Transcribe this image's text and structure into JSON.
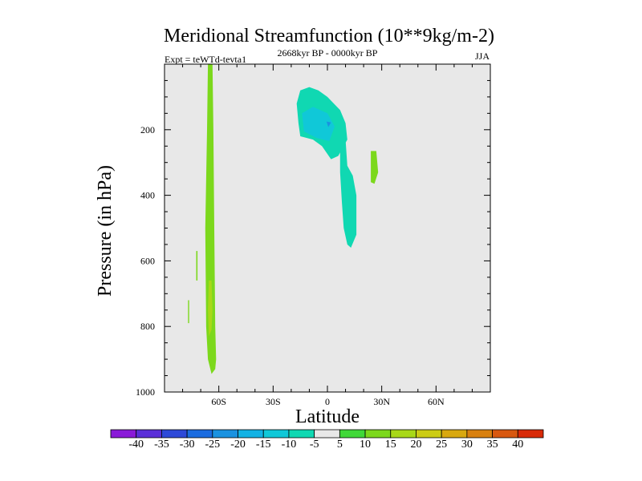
{
  "chart_data": {
    "type": "contour",
    "title": "Meridional Streamfunction (10**9kg/m-2)",
    "left_string": "Expt = teWTd-tevta1",
    "center_string": "2668kyr BP - 0000kyr BP",
    "right_string": "JJA",
    "xlabel": "Latitude",
    "ylabel": "Pressure (in hPa)",
    "xlim": [
      -90,
      90
    ],
    "ylim": [
      1000,
      0
    ],
    "x_ticks": [
      {
        "value": -60,
        "label": "60S"
      },
      {
        "value": -30,
        "label": "30S"
      },
      {
        "value": 0,
        "label": "0"
      },
      {
        "value": 30,
        "label": "30N"
      },
      {
        "value": 60,
        "label": "60N"
      }
    ],
    "y_ticks": [
      {
        "value": 200,
        "label": "200"
      },
      {
        "value": 400,
        "label": "400"
      },
      {
        "value": 600,
        "label": "600"
      },
      {
        "value": 800,
        "label": "800"
      },
      {
        "value": 1000,
        "label": "1000"
      }
    ],
    "background_color": "#e8e8e8",
    "colorbar": {
      "labels": [
        "-40",
        "-35",
        "-30",
        "-25",
        "-20",
        "-15",
        "-10",
        "-5",
        "5",
        "10",
        "15",
        "20",
        "25",
        "30",
        "35",
        "40"
      ],
      "colors": [
        "#8a1ad8",
        "#5a2fd8",
        "#2d49d8",
        "#1b6ce0",
        "#1a92e0",
        "#12b2e4",
        "#10c8d8",
        "#10d8b2",
        "#e8e8e8",
        "#40d838",
        "#7cd81c",
        "#a8d818",
        "#cccc14",
        "#d8a810",
        "#d88010",
        "#d85810",
        "#d82a08"
      ]
    },
    "regions": [
      {
        "name": "southern-column",
        "value": 5,
        "color": "#7cd81c",
        "points": [
          [
            -66,
            0
          ],
          [
            -63.5,
            0
          ],
          [
            -63,
            200
          ],
          [
            -62.5,
            500
          ],
          [
            -62,
            800
          ],
          [
            -61.5,
            900
          ],
          [
            -62,
            930
          ],
          [
            -64,
            945
          ],
          [
            -66,
            900
          ],
          [
            -67,
            800
          ],
          [
            -67.5,
            500
          ],
          [
            -66.5,
            200
          ]
        ]
      },
      {
        "name": "southern-column-core",
        "value": 10,
        "color": "#a8d818",
        "points": [
          [
            -65.5,
            660
          ],
          [
            -64,
            660
          ],
          [
            -63.5,
            750
          ],
          [
            -64,
            810
          ],
          [
            -65.5,
            830
          ],
          [
            -66,
            750
          ]
        ]
      },
      {
        "name": "patch-a",
        "value": 5,
        "color": "#7cd81c",
        "points": [
          [
            -72.5,
            570
          ],
          [
            -71.8,
            570
          ],
          [
            -71.8,
            660
          ],
          [
            -72.5,
            660
          ]
        ]
      },
      {
        "name": "patch-b",
        "value": 5,
        "color": "#7cd81c",
        "points": [
          [
            -77,
            720
          ],
          [
            -76.4,
            720
          ],
          [
            -76.4,
            790
          ],
          [
            -77,
            790
          ]
        ]
      },
      {
        "name": "upper-cell",
        "value": -10,
        "color": "#10d8b2",
        "points": [
          [
            -15,
            80
          ],
          [
            -10,
            70
          ],
          [
            -5,
            80
          ],
          [
            0,
            100
          ],
          [
            7,
            140
          ],
          [
            10,
            180
          ],
          [
            11,
            230
          ],
          [
            9,
            250
          ],
          [
            6,
            280
          ],
          [
            2,
            290
          ],
          [
            -3,
            250
          ],
          [
            -8,
            230
          ],
          [
            -15,
            220
          ],
          [
            -16,
            180
          ],
          [
            -17,
            120
          ]
        ]
      },
      {
        "name": "upper-cell-core",
        "value": -15,
        "color": "#10c8d8",
        "points": [
          [
            -14,
            150
          ],
          [
            -8,
            130
          ],
          [
            0,
            150
          ],
          [
            4,
            190
          ],
          [
            1,
            235
          ],
          [
            -6,
            225
          ],
          [
            -13,
            205
          ]
        ]
      },
      {
        "name": "upper-cell-min",
        "value": -20,
        "color": "#1a92e0",
        "points": [
          [
            -0.5,
            175
          ],
          [
            2,
            178
          ],
          [
            0.5,
            192
          ]
        ]
      },
      {
        "name": "tropical-tail",
        "value": -10,
        "color": "#10d8b2",
        "points": [
          [
            7,
            250
          ],
          [
            10,
            230
          ],
          [
            11,
            310
          ],
          [
            14,
            340
          ],
          [
            16,
            400
          ],
          [
            16,
            520
          ],
          [
            13,
            560
          ],
          [
            11,
            550
          ],
          [
            9,
            500
          ],
          [
            8,
            420
          ],
          [
            7,
            330
          ]
        ]
      },
      {
        "name": "northern-patch",
        "value": 5,
        "color": "#7cd81c",
        "points": [
          [
            24,
            265
          ],
          [
            27,
            265
          ],
          [
            28,
            330
          ],
          [
            26,
            365
          ],
          [
            24,
            360
          ]
        ]
      }
    ]
  }
}
